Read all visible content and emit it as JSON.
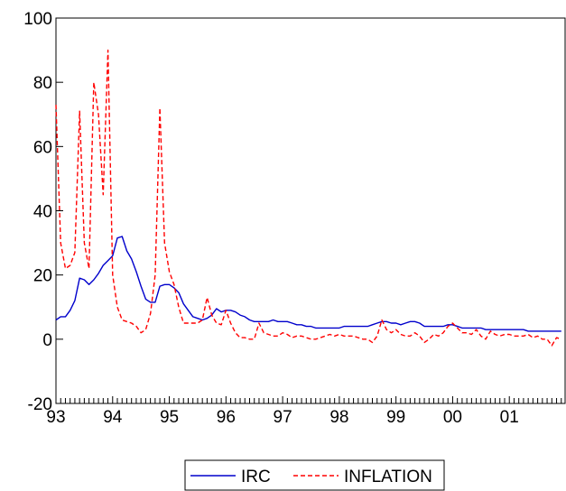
{
  "chart_data": {
    "type": "line",
    "title": "",
    "xlabel": "",
    "ylabel": "",
    "x_range": [
      1993.0,
      2001.917
    ],
    "ylim": [
      -20,
      100
    ],
    "y_ticks": [
      -20,
      0,
      20,
      40,
      60,
      80,
      100
    ],
    "x_ticks": [
      {
        "x": 1993,
        "label": "93"
      },
      {
        "x": 1994,
        "label": "94"
      },
      {
        "x": 1995,
        "label": "95"
      },
      {
        "x": 1996,
        "label": "96"
      },
      {
        "x": 1997,
        "label": "97"
      },
      {
        "x": 1998,
        "label": "98"
      },
      {
        "x": 1999,
        "label": "99"
      },
      {
        "x": 2000,
        "label": "00"
      },
      {
        "x": 2001,
        "label": "01"
      }
    ],
    "grid": false,
    "legend_position": "bottom-center",
    "series": [
      {
        "name": "IRC",
        "color": "#0000cc",
        "dash": "solid",
        "points": [
          [
            1993.0,
            6
          ],
          [
            1993.083,
            7
          ],
          [
            1993.167,
            7
          ],
          [
            1993.25,
            9
          ],
          [
            1993.333,
            12
          ],
          [
            1993.417,
            19
          ],
          [
            1993.5,
            18.5
          ],
          [
            1993.583,
            17
          ],
          [
            1993.667,
            18.5
          ],
          [
            1993.75,
            20.5
          ],
          [
            1993.833,
            23
          ],
          [
            1993.917,
            24.5
          ],
          [
            1994.0,
            26
          ],
          [
            1994.083,
            31.5
          ],
          [
            1994.167,
            32
          ],
          [
            1994.25,
            27.5
          ],
          [
            1994.333,
            25
          ],
          [
            1994.417,
            21
          ],
          [
            1994.5,
            16.5
          ],
          [
            1994.583,
            12.5
          ],
          [
            1994.667,
            11.5
          ],
          [
            1994.75,
            11.5
          ],
          [
            1994.833,
            16.5
          ],
          [
            1994.917,
            17
          ],
          [
            1995.0,
            17
          ],
          [
            1995.083,
            16
          ],
          [
            1995.167,
            14.5
          ],
          [
            1995.25,
            11
          ],
          [
            1995.333,
            9
          ],
          [
            1995.417,
            7
          ],
          [
            1995.5,
            6.5
          ],
          [
            1995.583,
            6
          ],
          [
            1995.667,
            6.5
          ],
          [
            1995.75,
            7.5
          ],
          [
            1995.833,
            9.5
          ],
          [
            1995.917,
            8.5
          ],
          [
            1996.0,
            9
          ],
          [
            1996.083,
            9
          ],
          [
            1996.167,
            8.5
          ],
          [
            1996.25,
            7.5
          ],
          [
            1996.333,
            7
          ],
          [
            1996.417,
            6
          ],
          [
            1996.5,
            5.5
          ],
          [
            1996.583,
            5.5
          ],
          [
            1996.667,
            5.5
          ],
          [
            1996.75,
            5.5
          ],
          [
            1996.833,
            6
          ],
          [
            1996.917,
            5.5
          ],
          [
            1997.0,
            5.5
          ],
          [
            1997.083,
            5.5
          ],
          [
            1997.167,
            5
          ],
          [
            1997.25,
            4.5
          ],
          [
            1997.333,
            4.5
          ],
          [
            1997.417,
            4
          ],
          [
            1997.5,
            4
          ],
          [
            1997.583,
            3.5
          ],
          [
            1997.667,
            3.5
          ],
          [
            1997.75,
            3.5
          ],
          [
            1997.833,
            3.5
          ],
          [
            1997.917,
            3.5
          ],
          [
            1998.0,
            3.5
          ],
          [
            1998.083,
            4
          ],
          [
            1998.167,
            4
          ],
          [
            1998.25,
            4
          ],
          [
            1998.333,
            4
          ],
          [
            1998.417,
            4
          ],
          [
            1998.5,
            4
          ],
          [
            1998.583,
            4.5
          ],
          [
            1998.667,
            5
          ],
          [
            1998.75,
            5.5
          ],
          [
            1998.833,
            5.5
          ],
          [
            1998.917,
            5
          ],
          [
            1999.0,
            5
          ],
          [
            1999.083,
            4.5
          ],
          [
            1999.167,
            5
          ],
          [
            1999.25,
            5.5
          ],
          [
            1999.333,
            5.5
          ],
          [
            1999.417,
            5
          ],
          [
            1999.5,
            4
          ],
          [
            1999.583,
            4
          ],
          [
            1999.667,
            4
          ],
          [
            1999.75,
            4
          ],
          [
            1999.833,
            4
          ],
          [
            1999.917,
            4.5
          ],
          [
            2000.0,
            4.5
          ],
          [
            2000.083,
            4
          ],
          [
            2000.167,
            3.5
          ],
          [
            2000.25,
            3.5
          ],
          [
            2000.333,
            3.5
          ],
          [
            2000.417,
            3.5
          ],
          [
            2000.5,
            3.5
          ],
          [
            2000.583,
            3
          ],
          [
            2000.667,
            3
          ],
          [
            2000.75,
            3
          ],
          [
            2000.833,
            3
          ],
          [
            2000.917,
            3
          ],
          [
            2001.0,
            3
          ],
          [
            2001.083,
            3
          ],
          [
            2001.167,
            3
          ],
          [
            2001.25,
            3
          ],
          [
            2001.333,
            2.5
          ],
          [
            2001.417,
            2.5
          ],
          [
            2001.5,
            2.5
          ],
          [
            2001.583,
            2.5
          ],
          [
            2001.667,
            2.5
          ],
          [
            2001.75,
            2.5
          ],
          [
            2001.833,
            2.5
          ],
          [
            2001.917,
            2.5
          ]
        ]
      },
      {
        "name": "INFLATION",
        "color": "#ff0000",
        "dash": "dashed",
        "points": [
          [
            1993.0,
            73
          ],
          [
            1993.083,
            30
          ],
          [
            1993.167,
            22
          ],
          [
            1993.25,
            23
          ],
          [
            1993.333,
            27
          ],
          [
            1993.417,
            71
          ],
          [
            1993.5,
            30
          ],
          [
            1993.583,
            22
          ],
          [
            1993.667,
            80
          ],
          [
            1993.75,
            70
          ],
          [
            1993.833,
            45
          ],
          [
            1993.917,
            90
          ],
          [
            1994.0,
            20
          ],
          [
            1994.083,
            10
          ],
          [
            1994.167,
            6
          ],
          [
            1994.25,
            5.5
          ],
          [
            1994.333,
            5
          ],
          [
            1994.417,
            4
          ],
          [
            1994.5,
            2
          ],
          [
            1994.583,
            3
          ],
          [
            1994.667,
            8
          ],
          [
            1994.75,
            20
          ],
          [
            1994.833,
            72
          ],
          [
            1994.917,
            30
          ],
          [
            1995.0,
            21
          ],
          [
            1995.083,
            17
          ],
          [
            1995.167,
            10
          ],
          [
            1995.25,
            5
          ],
          [
            1995.333,
            5
          ],
          [
            1995.417,
            5
          ],
          [
            1995.5,
            5
          ],
          [
            1995.583,
            6
          ],
          [
            1995.667,
            13
          ],
          [
            1995.75,
            7.5
          ],
          [
            1995.833,
            5
          ],
          [
            1995.917,
            4.5
          ],
          [
            1996.0,
            9
          ],
          [
            1996.083,
            5
          ],
          [
            1996.167,
            2
          ],
          [
            1996.25,
            0.5
          ],
          [
            1996.333,
            0.5
          ],
          [
            1996.417,
            0
          ],
          [
            1996.5,
            0
          ],
          [
            1996.583,
            5
          ],
          [
            1996.667,
            2
          ],
          [
            1996.75,
            1.5
          ],
          [
            1996.833,
            1
          ],
          [
            1996.917,
            1
          ],
          [
            1997.0,
            2
          ],
          [
            1997.083,
            1.5
          ],
          [
            1997.167,
            0.5
          ],
          [
            1997.25,
            1
          ],
          [
            1997.333,
            1
          ],
          [
            1997.417,
            0.5
          ],
          [
            1997.5,
            0
          ],
          [
            1997.583,
            0
          ],
          [
            1997.667,
            0.5
          ],
          [
            1997.75,
            1
          ],
          [
            1997.833,
            1.5
          ],
          [
            1997.917,
            1
          ],
          [
            1998.0,
            1.5
          ],
          [
            1998.083,
            1
          ],
          [
            1998.167,
            1
          ],
          [
            1998.25,
            1
          ],
          [
            1998.333,
            0.5
          ],
          [
            1998.417,
            0
          ],
          [
            1998.5,
            0
          ],
          [
            1998.583,
            -1
          ],
          [
            1998.667,
            1
          ],
          [
            1998.75,
            6
          ],
          [
            1998.833,
            3
          ],
          [
            1998.917,
            2
          ],
          [
            1999.0,
            3
          ],
          [
            1999.083,
            1.5
          ],
          [
            1999.167,
            1
          ],
          [
            1999.25,
            1
          ],
          [
            1999.333,
            2
          ],
          [
            1999.417,
            1
          ],
          [
            1999.5,
            -1
          ],
          [
            1999.583,
            0
          ],
          [
            1999.667,
            1.5
          ],
          [
            1999.75,
            1
          ],
          [
            1999.833,
            2
          ],
          [
            1999.917,
            4
          ],
          [
            2000.0,
            5
          ],
          [
            2000.083,
            3.5
          ],
          [
            2000.167,
            2
          ],
          [
            2000.25,
            2
          ],
          [
            2000.333,
            1.5
          ],
          [
            2000.417,
            3
          ],
          [
            2000.5,
            1
          ],
          [
            2000.583,
            0
          ],
          [
            2000.667,
            2.5
          ],
          [
            2000.75,
            1.5
          ],
          [
            2000.833,
            1
          ],
          [
            2000.917,
            1.5
          ],
          [
            2001.0,
            1.5
          ],
          [
            2001.083,
            1
          ],
          [
            2001.167,
            1
          ],
          [
            2001.25,
            1
          ],
          [
            2001.333,
            1.5
          ],
          [
            2001.417,
            0.5
          ],
          [
            2001.5,
            1
          ],
          [
            2001.583,
            0
          ],
          [
            2001.667,
            0
          ],
          [
            2001.75,
            -2
          ],
          [
            2001.833,
            0.5
          ],
          [
            2001.917,
            0
          ]
        ]
      }
    ]
  }
}
